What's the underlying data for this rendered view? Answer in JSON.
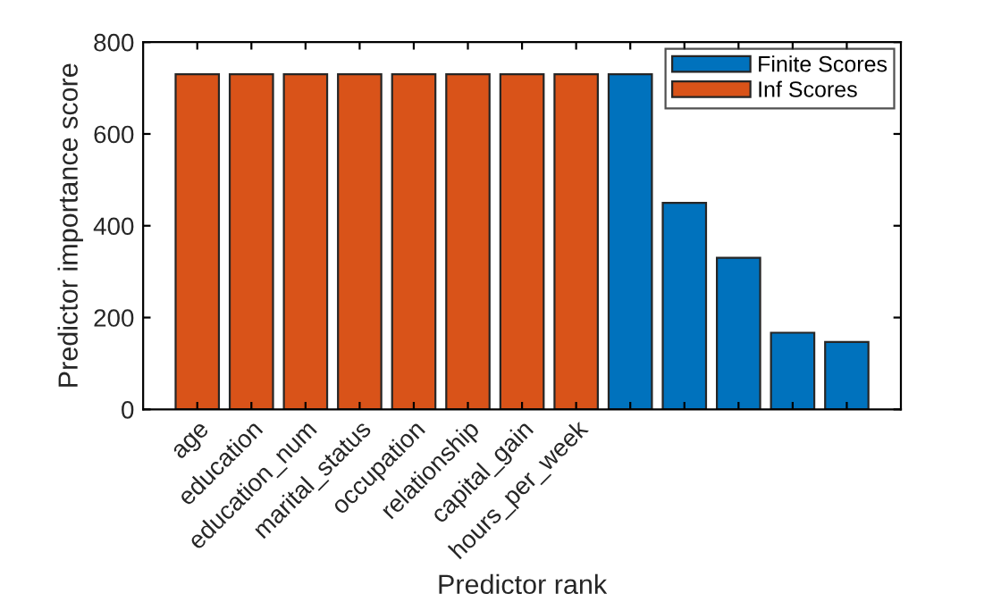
{
  "chart_data": {
    "type": "bar",
    "xlabel": "Predictor rank",
    "ylabel": "Predictor importance score",
    "categories": [
      "age",
      "education",
      "education_num",
      "marital_status",
      "occupation",
      "relationship",
      "capital_gain",
      "hours_per_week",
      null,
      null,
      null,
      null,
      null
    ],
    "series": [
      {
        "name": "Finite Scores",
        "color": "#0072bd",
        "values": [
          null,
          null,
          null,
          null,
          null,
          null,
          null,
          null,
          730,
          450,
          330,
          167,
          147
        ]
      },
      {
        "name": "Inf Scores",
        "color": "#d95319",
        "values": [
          730,
          730,
          730,
          730,
          730,
          730,
          730,
          730,
          null,
          null,
          null,
          null,
          null
        ]
      }
    ],
    "ylim": [
      0,
      800
    ],
    "yticks": [
      0,
      200,
      400,
      600,
      800
    ],
    "grid": false,
    "legend": "top right"
  }
}
